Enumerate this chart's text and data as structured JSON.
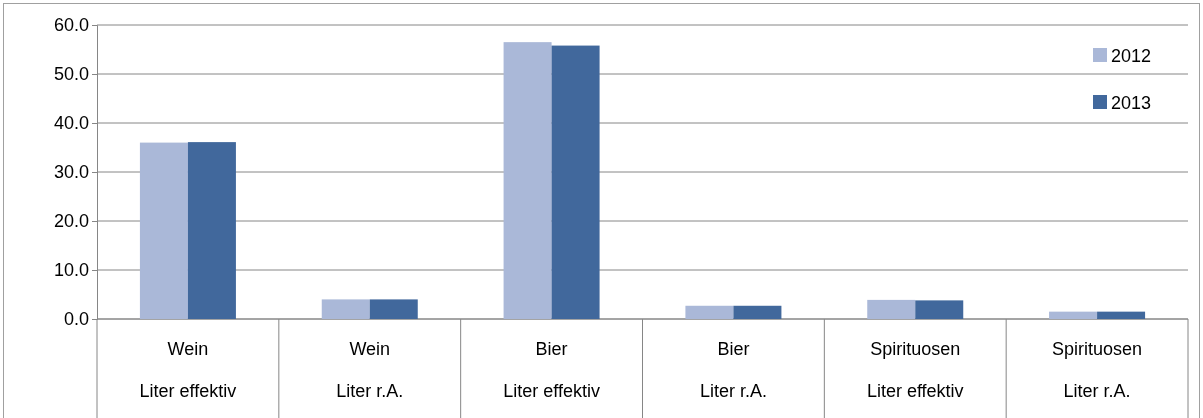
{
  "chart_data": {
    "type": "bar",
    "categories": [
      "Wein\nLiter effektiv",
      "Wein\nLiter r.A.",
      "Bier\nLiter effektiv",
      "Bier\nLiter r.A.",
      "Spirituosen\nLiter effektiv",
      "Spirituosen\nLiter r.A."
    ],
    "series": [
      {
        "name": "2012",
        "color": "#aab8d8",
        "values": [
          36.0,
          4.0,
          56.5,
          2.7,
          3.9,
          1.5
        ]
      },
      {
        "name": "2013",
        "color": "#41689c",
        "values": [
          36.1,
          4.0,
          55.8,
          2.7,
          3.8,
          1.5
        ]
      }
    ],
    "ylim": [
      0,
      60
    ],
    "yticks": [
      {
        "value": 0,
        "label": "0.0"
      },
      {
        "value": 10,
        "label": "10.0"
      },
      {
        "value": 20,
        "label": "20.0"
      },
      {
        "value": 30,
        "label": "30.0"
      },
      {
        "value": 40,
        "label": "40.0"
      },
      {
        "value": 50,
        "label": "50.0"
      },
      {
        "value": 60,
        "label": "60.0"
      }
    ],
    "grid": "y",
    "legend": "top right"
  }
}
